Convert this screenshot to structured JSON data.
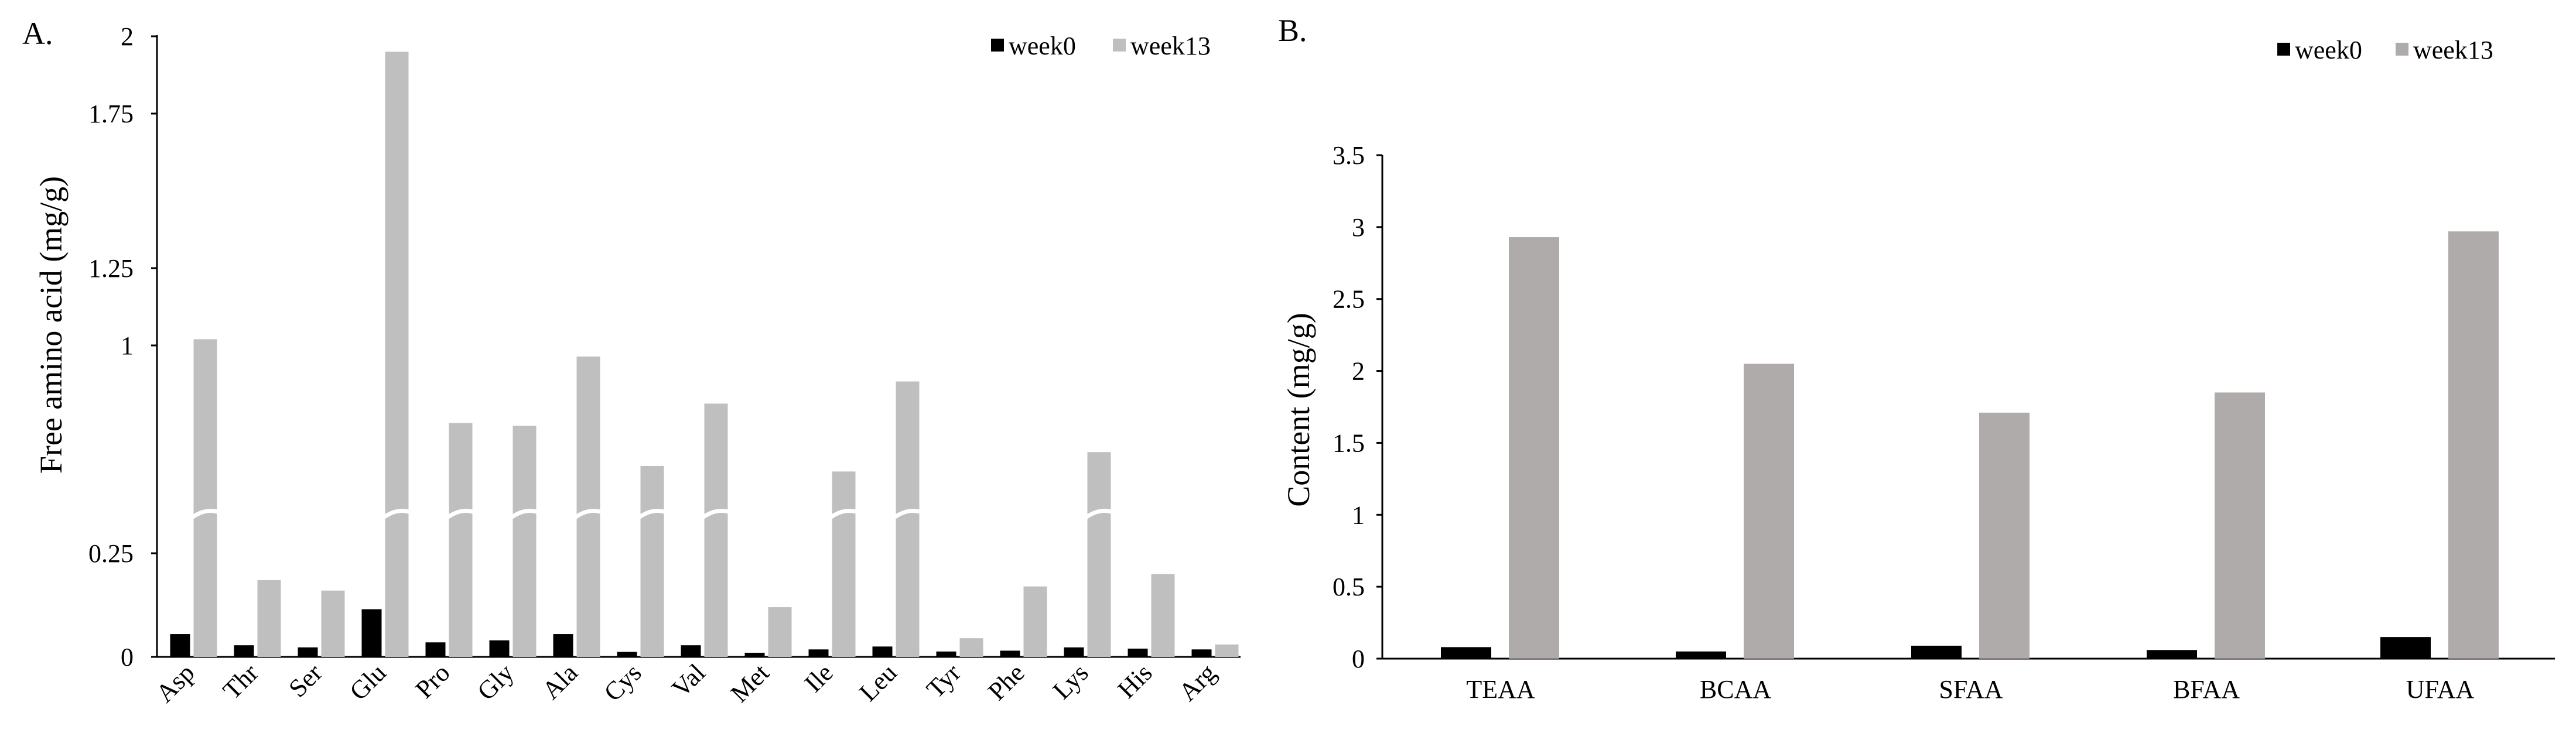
{
  "chart_data": [
    {
      "id": "A",
      "panel_label": "A.",
      "type": "bar",
      "ylabel": "Free amino acid (mg/g)",
      "yticks": [
        "0",
        "0.25",
        "1",
        "1.25",
        "1.75",
        "2"
      ],
      "axis_break": "between 0.25 and 1",
      "categories": [
        "Asp",
        "Thr",
        "Ser",
        "Glu",
        "Pro",
        "Gly",
        "Ala",
        "Cys",
        "Val",
        "Met",
        "Ile",
        "Leu",
        "Tyr",
        "Phe",
        "Lys",
        "His",
        "Arg"
      ],
      "series": [
        {
          "name": "week0",
          "color": "#000000",
          "values": [
            0.055,
            0.028,
            0.023,
            0.115,
            0.035,
            0.04,
            0.055,
            0.012,
            0.028,
            0.01,
            0.018,
            0.025,
            0.013,
            0.015,
            0.023,
            0.02,
            0.018
          ]
        },
        {
          "name": "week13",
          "color": "#bfbfbf",
          "values": [
            1.02,
            0.185,
            0.16,
            1.95,
            0.72,
            0.71,
            0.96,
            0.565,
            0.79,
            0.12,
            0.545,
            0.87,
            0.045,
            0.17,
            0.615,
            0.2,
            0.03
          ]
        }
      ],
      "legend": [
        "week0",
        "week13"
      ],
      "legend_position": "top-right"
    },
    {
      "id": "B",
      "panel_label": "B.",
      "type": "bar",
      "ylabel": "Content (mg/g)",
      "ylim": [
        0,
        3.5
      ],
      "yticks": [
        "0",
        "0.5",
        "1",
        "1.5",
        "2",
        "2.5",
        "3",
        "3.5"
      ],
      "categories": [
        "TEAA",
        "BCAA",
        "SFAA",
        "BFAA",
        "UFAA"
      ],
      "series": [
        {
          "name": "week0",
          "color": "#000000",
          "values": [
            0.08,
            0.05,
            0.09,
            0.06,
            0.15
          ]
        },
        {
          "name": "week13",
          "color": "#b0abab",
          "values": [
            2.93,
            2.05,
            1.71,
            1.85,
            2.97
          ]
        }
      ],
      "legend": [
        "week0",
        "week13"
      ],
      "legend_position": "top-right"
    }
  ]
}
